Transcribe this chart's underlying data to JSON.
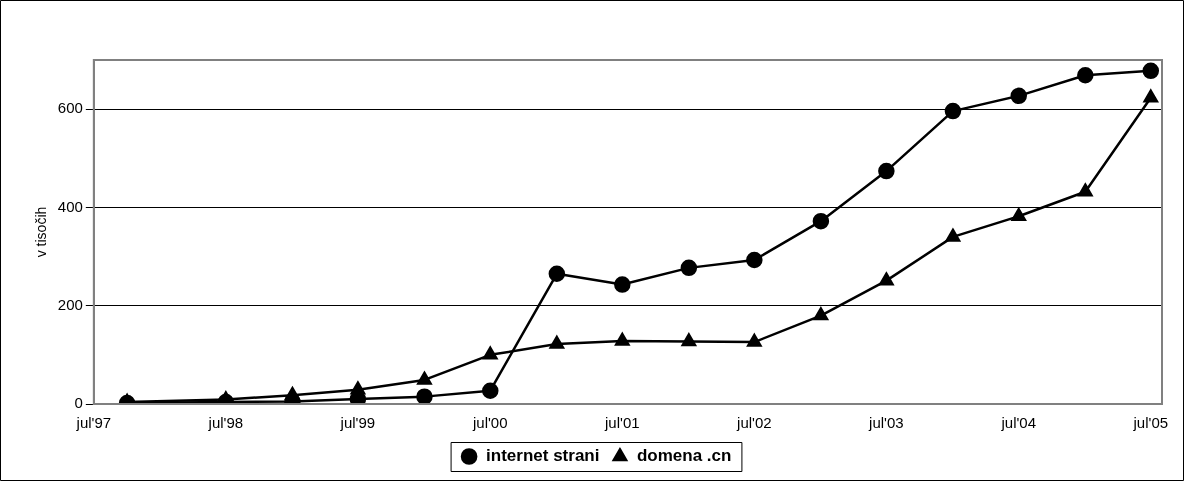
{
  "chart_data": {
    "type": "line",
    "ylabel": "v tisočih",
    "x": [
      "1997-10",
      "1998-07",
      "1999-01",
      "1999-07",
      "2000-01",
      "2000-07",
      "2001-01",
      "2001-07",
      "2002-01",
      "2002-07",
      "2003-01",
      "2003-07",
      "2004-01",
      "2004-07",
      "2005-01",
      "2005-07"
    ],
    "series": [
      {
        "name": "internet strani",
        "color": "#000000",
        "marker": "circle",
        "values": [
          2,
          4,
          5,
          10,
          15,
          27,
          265,
          243,
          277,
          293,
          372,
          474,
          596,
          627,
          669,
          678
        ]
      },
      {
        "name": "domena .cn",
        "color": "#000000",
        "marker": "triangle",
        "values": [
          4,
          9,
          18,
          29,
          49,
          100,
          122,
          128,
          127,
          126,
          180,
          251,
          340,
          382,
          432,
          623
        ]
      }
    ],
    "xlim": [
      "1997-07",
      "2005-08"
    ],
    "xticks": [
      {
        "value": "1997-07",
        "label": "jul'97"
      },
      {
        "value": "1998-07",
        "label": "jul'98"
      },
      {
        "value": "1999-07",
        "label": "jul'99"
      },
      {
        "value": "2000-07",
        "label": "jul'00"
      },
      {
        "value": "2001-07",
        "label": "jul'01"
      },
      {
        "value": "2002-07",
        "label": "jul'02"
      },
      {
        "value": "2003-07",
        "label": "jul'03"
      },
      {
        "value": "2004-07",
        "label": "jul'04"
      },
      {
        "value": "2005-07",
        "label": "jul'05"
      }
    ],
    "ylim": [
      0,
      700
    ],
    "yticks": [
      0,
      200,
      400,
      600
    ],
    "grid": "y",
    "legend": "bottom",
    "line_style": "solid"
  }
}
